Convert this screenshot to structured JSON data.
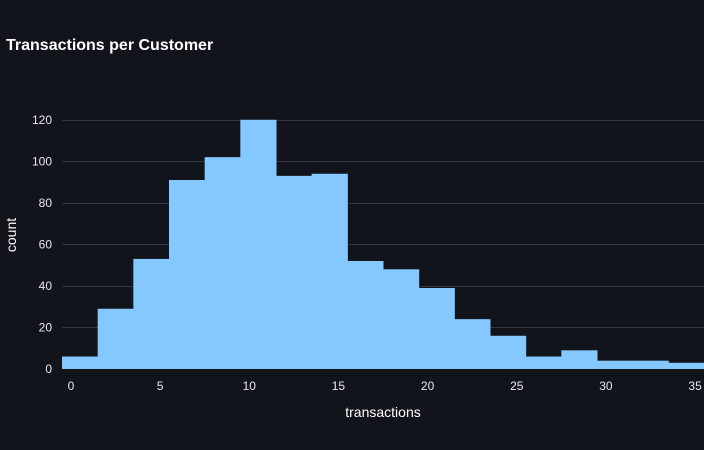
{
  "colors": {
    "background": "#11141b",
    "bar": "#84c8ff",
    "grid": "#2f343e",
    "text": "#ffffff",
    "tick_text": "#e6e8ec"
  },
  "chart_data": {
    "type": "bar",
    "title": "Transactions per Customer",
    "xlabel": "transactions",
    "ylabel": "count",
    "bin_width": 2,
    "bins": [
      {
        "start": -0.5,
        "end": 1.5,
        "count": 6
      },
      {
        "start": 1.5,
        "end": 3.5,
        "count": 29
      },
      {
        "start": 3.5,
        "end": 5.5,
        "count": 53
      },
      {
        "start": 5.5,
        "end": 7.5,
        "count": 91
      },
      {
        "start": 7.5,
        "end": 9.5,
        "count": 102
      },
      {
        "start": 9.5,
        "end": 11.5,
        "count": 120
      },
      {
        "start": 11.5,
        "end": 13.5,
        "count": 93
      },
      {
        "start": 13.5,
        "end": 15.5,
        "count": 94
      },
      {
        "start": 15.5,
        "end": 17.5,
        "count": 52
      },
      {
        "start": 17.5,
        "end": 19.5,
        "count": 48
      },
      {
        "start": 19.5,
        "end": 21.5,
        "count": 39
      },
      {
        "start": 21.5,
        "end": 23.5,
        "count": 24
      },
      {
        "start": 23.5,
        "end": 25.5,
        "count": 16
      },
      {
        "start": 25.5,
        "end": 27.5,
        "count": 6
      },
      {
        "start": 27.5,
        "end": 29.5,
        "count": 9
      },
      {
        "start": 29.5,
        "end": 31.5,
        "count": 4
      },
      {
        "start": 31.5,
        "end": 33.5,
        "count": 4
      },
      {
        "start": 33.5,
        "end": 35.5,
        "count": 3
      }
    ],
    "xlim": [
      -0.5,
      35.5
    ],
    "ylim": [
      0,
      130
    ],
    "x_ticks": [
      {
        "value": 0,
        "label": "0"
      },
      {
        "value": 5,
        "label": "5"
      },
      {
        "value": 10,
        "label": "10"
      },
      {
        "value": 15,
        "label": "15"
      },
      {
        "value": 20,
        "label": "20"
      },
      {
        "value": 25,
        "label": "25"
      },
      {
        "value": 30,
        "label": "30"
      },
      {
        "value": 35,
        "label": "35"
      }
    ],
    "y_ticks": [
      {
        "value": 0,
        "label": "0"
      },
      {
        "value": 20,
        "label": "20"
      },
      {
        "value": 40,
        "label": "40"
      },
      {
        "value": 60,
        "label": "60"
      },
      {
        "value": 80,
        "label": "80"
      },
      {
        "value": 100,
        "label": "100"
      },
      {
        "value": 120,
        "label": "120"
      }
    ],
    "grid": true,
    "legend": "none"
  }
}
